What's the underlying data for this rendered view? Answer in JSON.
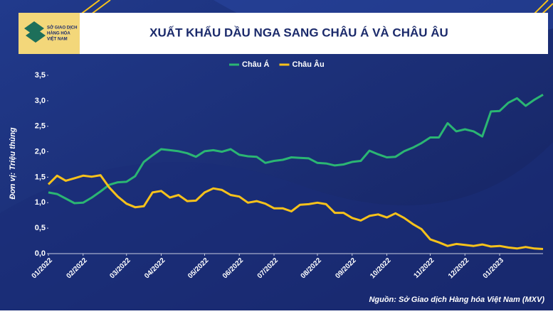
{
  "logo_text": [
    "SỞ GIAO DỊCH",
    "HÀNG HÓA",
    "VIỆT NAM"
  ],
  "chart_data": {
    "type": "line",
    "title": "XUẤT KHẨU DẦU NGA SANG CHÂU Á VÀ CHÂU ÂU",
    "y_label": "Đơn vị: Triệu thùng",
    "source": "Nguồn: Sở Giao dịch Hàng hóa Việt Nam (MXV)",
    "legend": "top",
    "categories": [
      "01/2022",
      null,
      null,
      null,
      "02/2022",
      null,
      null,
      null,
      null,
      "03/2022",
      null,
      null,
      null,
      "04/2022",
      null,
      null,
      null,
      null,
      "05/2022",
      null,
      null,
      null,
      "06/2022",
      null,
      null,
      null,
      "07/2022",
      null,
      null,
      null,
      null,
      "08/2022",
      null,
      null,
      null,
      "09/2022",
      null,
      null,
      null,
      "10/2022",
      null,
      null,
      null,
      null,
      "11/2022",
      null,
      null,
      null,
      "12/2022",
      null,
      null,
      null,
      "01/2023",
      null,
      null,
      null,
      null,
      null
    ],
    "series": [
      {
        "name": "Châu Á",
        "color": "#2bb673",
        "values": [
          1.2,
          1.17,
          1.08,
          0.99,
          1.0,
          1.1,
          1.22,
          1.35,
          1.4,
          1.41,
          1.52,
          1.8,
          1.93,
          2.05,
          2.03,
          2.01,
          1.97,
          1.9,
          2.01,
          2.03,
          2.0,
          2.05,
          1.94,
          1.91,
          1.9,
          1.78,
          1.82,
          1.84,
          1.89,
          1.88,
          1.87,
          1.78,
          1.77,
          1.73,
          1.75,
          1.8,
          1.82,
          2.02,
          1.95,
          1.89,
          1.9,
          2.01,
          2.08,
          2.17,
          2.28,
          2.28,
          2.56,
          2.4,
          2.44,
          2.4,
          2.3,
          2.79,
          2.8,
          2.96,
          3.05,
          2.9,
          3.02,
          3.12
        ]
      },
      {
        "name": "Châu Âu",
        "color": "#f7c21b",
        "values": [
          1.36,
          1.53,
          1.43,
          1.48,
          1.53,
          1.51,
          1.54,
          1.3,
          1.12,
          0.98,
          0.91,
          0.93,
          1.2,
          1.23,
          1.1,
          1.15,
          1.03,
          1.04,
          1.2,
          1.28,
          1.25,
          1.15,
          1.12,
          1.0,
          1.03,
          0.98,
          0.89,
          0.89,
          0.83,
          0.96,
          0.97,
          1.0,
          0.97,
          0.8,
          0.8,
          0.7,
          0.65,
          0.74,
          0.77,
          0.71,
          0.79,
          0.7,
          0.58,
          0.48,
          0.28,
          0.22,
          0.15,
          0.19,
          0.17,
          0.15,
          0.18,
          0.14,
          0.15,
          0.12,
          0.1,
          0.13,
          0.1,
          0.09
        ]
      }
    ],
    "ylim": [
      0,
      3.5
    ],
    "yticks": [
      {
        "value": 0,
        "label": "0,0"
      },
      {
        "value": 0.5,
        "label": "0,5"
      },
      {
        "value": 1,
        "label": "1,0"
      },
      {
        "value": 1.5,
        "label": "1,5"
      },
      {
        "value": 2,
        "label": "2,0"
      },
      {
        "value": 2.5,
        "label": "2,5"
      },
      {
        "value": 3,
        "label": "3,0"
      },
      {
        "value": 3.5,
        "label": "3,5"
      }
    ]
  }
}
